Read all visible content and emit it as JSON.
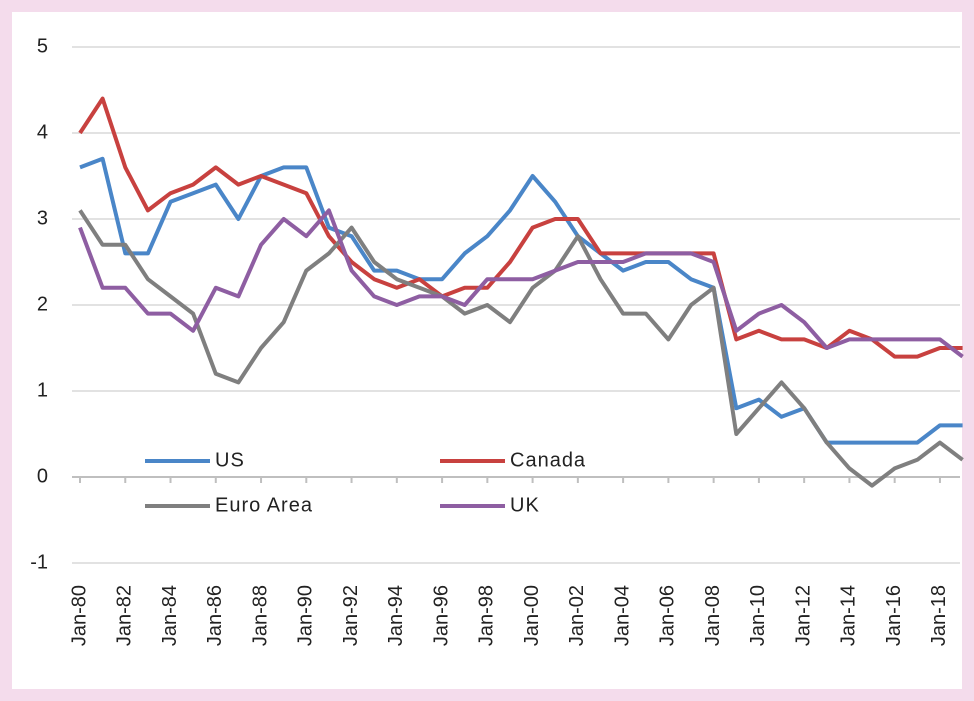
{
  "chart_data": {
    "type": "line",
    "categories": [
      "Jan-80",
      null,
      "Jan-82",
      null,
      "Jan-84",
      null,
      "Jan-86",
      null,
      "Jan-88",
      null,
      "Jan-90",
      null,
      "Jan-92",
      null,
      "Jan-94",
      null,
      "Jan-96",
      null,
      "Jan-98",
      null,
      "Jan-00",
      null,
      "Jan-02",
      null,
      "Jan-04",
      null,
      "Jan-06",
      null,
      "Jan-08",
      null,
      "Jan-10",
      null,
      "Jan-12",
      null,
      "Jan-14",
      null,
      "Jan-16",
      null,
      "Jan-18",
      null
    ],
    "series": [
      {
        "name": "US",
        "color": "#4a86c8",
        "values": [
          3.6,
          3.7,
          2.6,
          2.6,
          3.2,
          3.3,
          3.4,
          3.0,
          3.5,
          3.6,
          3.6,
          2.9,
          2.8,
          2.4,
          2.4,
          2.3,
          2.3,
          2.6,
          2.8,
          3.1,
          3.5,
          3.2,
          2.8,
          2.6,
          2.4,
          2.5,
          2.5,
          2.3,
          2.2,
          0.8,
          0.9,
          0.7,
          0.8,
          0.4,
          0.4,
          0.4,
          0.4,
          0.4,
          0.6,
          0.6
        ]
      },
      {
        "name": "Canada",
        "color": "#c8413f",
        "values": [
          4.0,
          4.4,
          3.6,
          3.1,
          3.3,
          3.4,
          3.6,
          3.4,
          3.5,
          3.4,
          3.3,
          2.8,
          2.5,
          2.3,
          2.2,
          2.3,
          2.1,
          2.2,
          2.2,
          2.5,
          2.9,
          3.0,
          3.0,
          2.6,
          2.6,
          2.6,
          2.6,
          2.6,
          2.6,
          1.6,
          1.7,
          1.6,
          1.6,
          1.5,
          1.7,
          1.6,
          1.4,
          1.4,
          1.5,
          1.5
        ]
      },
      {
        "name": "Euro Area",
        "color": "#7f7f7f",
        "values": [
          3.1,
          2.7,
          2.7,
          2.3,
          2.1,
          1.9,
          1.2,
          1.1,
          1.5,
          1.8,
          2.4,
          2.6,
          2.9,
          2.5,
          2.3,
          2.2,
          2.1,
          1.9,
          2.0,
          1.8,
          2.2,
          2.4,
          2.8,
          2.3,
          1.9,
          1.9,
          1.6,
          2.0,
          2.2,
          0.5,
          0.8,
          1.1,
          0.8,
          0.4,
          0.1,
          -0.1,
          0.1,
          0.2,
          0.4,
          0.2
        ]
      },
      {
        "name": "UK",
        "color": "#8e5ea2",
        "values": [
          2.9,
          2.2,
          2.2,
          1.9,
          1.9,
          1.7,
          2.2,
          2.1,
          2.7,
          3.0,
          2.8,
          3.1,
          2.4,
          2.1,
          2.0,
          2.1,
          2.1,
          2.0,
          2.3,
          2.3,
          2.3,
          2.4,
          2.5,
          2.5,
          2.5,
          2.6,
          2.6,
          2.6,
          2.5,
          1.7,
          1.9,
          2.0,
          1.8,
          1.5,
          1.6,
          1.6,
          1.6,
          1.6,
          1.6,
          1.4
        ]
      }
    ],
    "ylim": [
      -1,
      5
    ],
    "yticks": [
      -1,
      0,
      1,
      2,
      3,
      4,
      5
    ],
    "grid": true
  }
}
